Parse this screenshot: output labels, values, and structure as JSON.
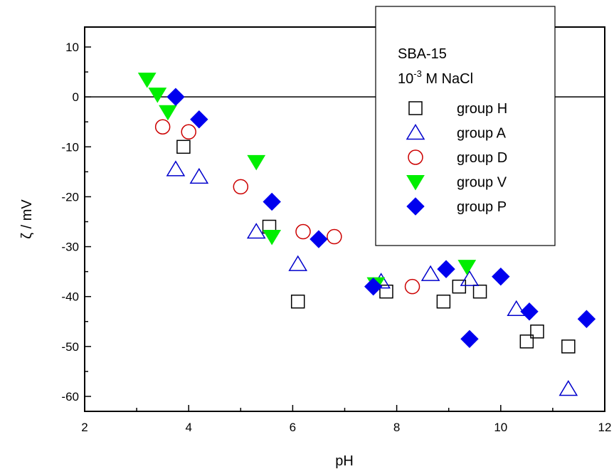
{
  "chart_data": {
    "type": "scatter",
    "xlabel": "pH",
    "ylabel": "ζ / mV",
    "xlim": [
      2,
      12
    ],
    "ylim": [
      -63,
      14
    ],
    "x_ticks": [
      2,
      4,
      6,
      8,
      10,
      12
    ],
    "y_ticks": [
      10,
      0,
      -10,
      -20,
      -30,
      -40,
      -50,
      -60
    ],
    "zero_line": true,
    "grid": false,
    "legend": {
      "placement": "top-right",
      "header_line1": "SBA-15",
      "header_line2_base": "10",
      "header_line2_sup": "-3",
      "header_line2_rest": " M NaCl"
    },
    "series": [
      {
        "name": "group H",
        "marker": "square",
        "filled": false,
        "color": "#000000",
        "points": [
          [
            3.9,
            -10
          ],
          [
            5.55,
            -26
          ],
          [
            6.1,
            -41
          ],
          [
            7.8,
            -39
          ],
          [
            8.9,
            -41
          ],
          [
            9.2,
            -38
          ],
          [
            9.6,
            -39
          ],
          [
            10.5,
            -49
          ],
          [
            10.7,
            -47
          ],
          [
            11.3,
            -50
          ]
        ]
      },
      {
        "name": "group A",
        "marker": "triangle-up",
        "filled": false,
        "color": "#0000cc",
        "points": [
          [
            3.75,
            -14.5
          ],
          [
            4.2,
            -16
          ],
          [
            5.3,
            -27
          ],
          [
            6.1,
            -33.5
          ],
          [
            7.7,
            -37
          ],
          [
            8.65,
            -35.5
          ],
          [
            9.4,
            -36.5
          ],
          [
            10.3,
            -42.5
          ],
          [
            11.3,
            -58.5
          ]
        ]
      },
      {
        "name": "group D",
        "marker": "circle",
        "filled": false,
        "color": "#cc0000",
        "points": [
          [
            3.5,
            -6
          ],
          [
            4.0,
            -7
          ],
          [
            5.0,
            -18
          ],
          [
            6.2,
            -27
          ],
          [
            6.8,
            -28
          ],
          [
            8.3,
            -38
          ]
        ]
      },
      {
        "name": "group V",
        "marker": "triangle-down",
        "filled": true,
        "color": "#00ee00",
        "points": [
          [
            3.2,
            3.5
          ],
          [
            3.4,
            0.5
          ],
          [
            3.6,
            -3
          ],
          [
            5.3,
            -13
          ],
          [
            5.6,
            -28
          ],
          [
            7.6,
            -37.5
          ],
          [
            9.35,
            -34
          ]
        ]
      },
      {
        "name": "group P",
        "marker": "diamond",
        "filled": true,
        "color": "#0000ee",
        "points": [
          [
            3.75,
            0
          ],
          [
            4.2,
            -4.5
          ],
          [
            5.6,
            -21
          ],
          [
            6.5,
            -28.5
          ],
          [
            7.55,
            -38
          ],
          [
            8.95,
            -34.5
          ],
          [
            9.4,
            -48.5
          ],
          [
            10.0,
            -36
          ],
          [
            10.55,
            -43
          ],
          [
            11.65,
            -44.5
          ]
        ]
      }
    ]
  }
}
